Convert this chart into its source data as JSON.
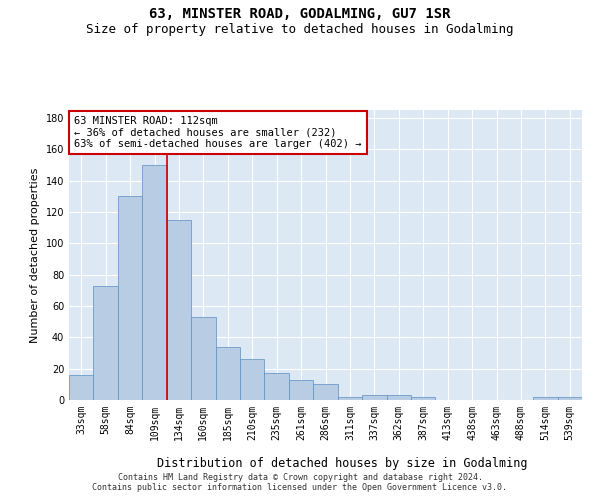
{
  "title": "63, MINSTER ROAD, GODALMING, GU7 1SR",
  "subtitle": "Size of property relative to detached houses in Godalming",
  "xlabel": "Distribution of detached houses by size in Godalming",
  "ylabel": "Number of detached properties",
  "categories": [
    "33sqm",
    "58sqm",
    "84sqm",
    "109sqm",
    "134sqm",
    "160sqm",
    "185sqm",
    "210sqm",
    "235sqm",
    "261sqm",
    "286sqm",
    "311sqm",
    "337sqm",
    "362sqm",
    "387sqm",
    "413sqm",
    "438sqm",
    "463sqm",
    "488sqm",
    "514sqm",
    "539sqm"
  ],
  "values": [
    16,
    73,
    130,
    150,
    115,
    53,
    34,
    26,
    17,
    13,
    10,
    2,
    3,
    3,
    2,
    0,
    0,
    0,
    0,
    2,
    2
  ],
  "bar_color": "#b8cce4",
  "bar_edge_color": "#5a8fc2",
  "background_color": "#dce9f5",
  "grid_color": "#ffffff",
  "property_line_x": 3.5,
  "annotation_text": "63 MINSTER ROAD: 112sqm\n← 36% of detached houses are smaller (232)\n63% of semi-detached houses are larger (402) →",
  "annotation_box_color": "#ffffff",
  "annotation_box_edge_color": "#cc0000",
  "vline_color": "#cc0000",
  "ylim": [
    0,
    185
  ],
  "yticks": [
    0,
    20,
    40,
    60,
    80,
    100,
    120,
    140,
    160,
    180
  ],
  "footer1": "Contains HM Land Registry data © Crown copyright and database right 2024.",
  "footer2": "Contains public sector information licensed under the Open Government Licence v3.0.",
  "title_fontsize": 10,
  "subtitle_fontsize": 9,
  "xlabel_fontsize": 8.5,
  "ylabel_fontsize": 8,
  "tick_fontsize": 7,
  "annotation_fontsize": 7.5,
  "footer_fontsize": 6
}
